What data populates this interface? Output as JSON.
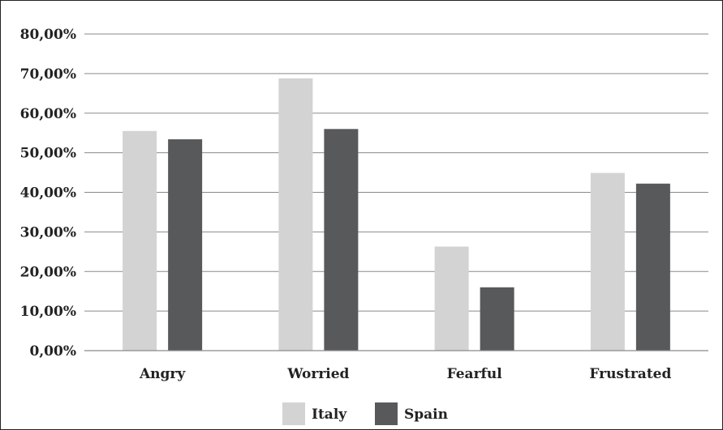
{
  "chart_data": {
    "type": "bar",
    "title": "",
    "xlabel": "",
    "ylabel": "",
    "categories": [
      "Angry",
      "Worried",
      "Fearful",
      "Frustrated"
    ],
    "series": [
      {
        "name": "Italy",
        "color": "#d3d3d4",
        "values": [
          55.5,
          68.8,
          26.3,
          44.9
        ]
      },
      {
        "name": "Spain",
        "color": "#58595b",
        "values": [
          53.4,
          56.0,
          16.0,
          42.2
        ]
      }
    ],
    "ylim": [
      0,
      80
    ],
    "ytick_values": [
      0,
      10,
      20,
      30,
      40,
      50,
      60,
      70,
      80
    ],
    "ytick_labels": [
      "0,00%",
      "10,00%",
      "20,00%",
      "30,00%",
      "40,00%",
      "50,00%",
      "60,00%",
      "70,00%",
      "80,00%"
    ],
    "grid": true,
    "legend_position": "bottom"
  }
}
